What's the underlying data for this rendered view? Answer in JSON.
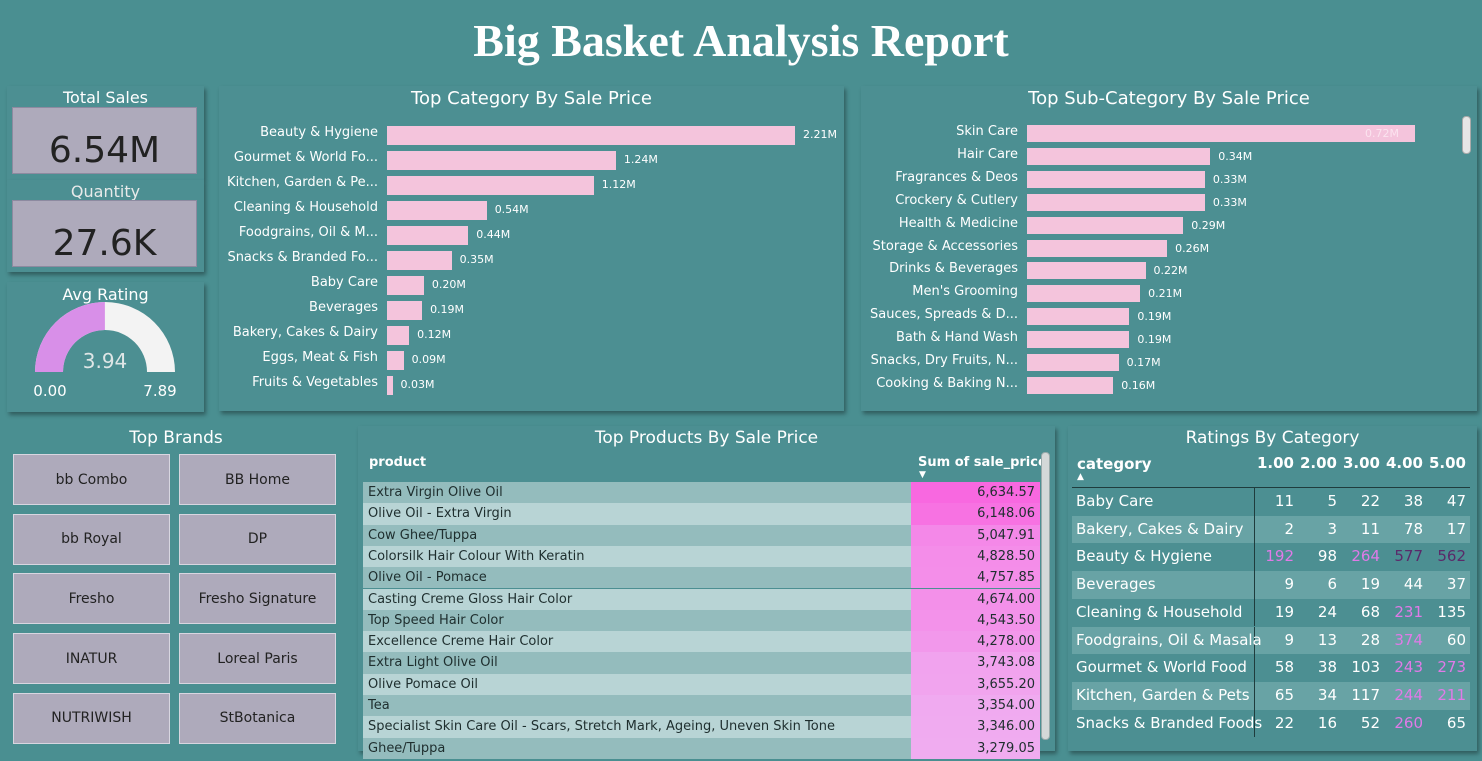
{
  "report": {
    "title": "Big Basket Analysis Report"
  },
  "kpis": {
    "total_sales": {
      "label": "Total Sales",
      "value": "6.54M"
    },
    "quantity": {
      "label": "Quantity",
      "value": "27.6K"
    },
    "avg_rating": {
      "label": "Avg Rating",
      "value": "3.94",
      "min": "0.00",
      "max": "7.89",
      "fraction": 0.4994,
      "fill_color": "#d88fe8",
      "track_color": "#f3f3f3"
    }
  },
  "top_category": {
    "title": "Top Category By Sale Price",
    "items": [
      {
        "label": "Beauty & Hygiene",
        "value": 2.21,
        "display": "2.21M"
      },
      {
        "label": "Gourmet & World Fo...",
        "value": 1.24,
        "display": "1.24M"
      },
      {
        "label": "Kitchen, Garden & Pe...",
        "value": 1.12,
        "display": "1.12M"
      },
      {
        "label": "Cleaning & Household",
        "value": 0.54,
        "display": "0.54M"
      },
      {
        "label": "Foodgrains, Oil & M...",
        "value": 0.44,
        "display": "0.44M"
      },
      {
        "label": "Snacks & Branded Fo...",
        "value": 0.35,
        "display": "0.35M"
      },
      {
        "label": "Baby Care",
        "value": 0.2,
        "display": "0.20M"
      },
      {
        "label": "Beverages",
        "value": 0.19,
        "display": "0.19M"
      },
      {
        "label": "Bakery, Cakes & Dairy",
        "value": 0.12,
        "display": "0.12M"
      },
      {
        "label": "Eggs, Meat & Fish",
        "value": 0.09,
        "display": "0.09M"
      },
      {
        "label": "Fruits & Vegetables",
        "value": 0.03,
        "display": "0.03M"
      }
    ]
  },
  "top_subcategory": {
    "title": "Top Sub-Category By Sale Price",
    "items": [
      {
        "label": "Skin Care",
        "value": 0.72,
        "display": "0.72M"
      },
      {
        "label": "Hair Care",
        "value": 0.34,
        "display": "0.34M"
      },
      {
        "label": "Fragrances & Deos",
        "value": 0.33,
        "display": "0.33M"
      },
      {
        "label": "Crockery & Cutlery",
        "value": 0.33,
        "display": "0.33M"
      },
      {
        "label": "Health & Medicine",
        "value": 0.29,
        "display": "0.29M"
      },
      {
        "label": "Storage & Accessories",
        "value": 0.26,
        "display": "0.26M"
      },
      {
        "label": "Drinks & Beverages",
        "value": 0.22,
        "display": "0.22M"
      },
      {
        "label": "Men's Grooming",
        "value": 0.21,
        "display": "0.21M"
      },
      {
        "label": "Sauces, Spreads & D...",
        "value": 0.19,
        "display": "0.19M"
      },
      {
        "label": "Bath & Hand Wash",
        "value": 0.19,
        "display": "0.19M"
      },
      {
        "label": "Snacks, Dry Fruits, N...",
        "value": 0.17,
        "display": "0.17M"
      },
      {
        "label": "Cooking & Baking N...",
        "value": 0.16,
        "display": "0.16M"
      }
    ]
  },
  "top_brands": {
    "title": "Top Brands",
    "items": [
      "bb Combo",
      "BB Home",
      "bb Royal",
      "DP",
      "Fresho",
      "Fresho Signature",
      "INATUR",
      "Loreal Paris",
      "NUTRIWISH",
      "StBotanica"
    ]
  },
  "top_products": {
    "title": "Top Products By Sale Price",
    "col_product": "product",
    "col_value": "Sum of sale_price",
    "rows": [
      {
        "product": "Extra Virgin Olive Oil",
        "value": 6634.57,
        "display": "6,634.57"
      },
      {
        "product": "Olive Oil - Extra Virgin",
        "value": 6148.06,
        "display": "6,148.06"
      },
      {
        "product": "Cow Ghee/Tuppa",
        "value": 5047.91,
        "display": "5,047.91"
      },
      {
        "product": "Colorsilk Hair Colour With Keratin",
        "value": 4828.5,
        "display": "4,828.50"
      },
      {
        "product": "Olive Oil - Pomace",
        "value": 4757.85,
        "display": "4,757.85"
      },
      {
        "product": "Casting Creme Gloss Hair Color",
        "value": 4674.0,
        "display": "4,674.00"
      },
      {
        "product": "Top Speed Hair Color",
        "value": 4543.5,
        "display": "4,543.50"
      },
      {
        "product": "Excellence Creme Hair Color",
        "value": 4278.0,
        "display": "4,278.00"
      },
      {
        "product": "Extra Light Olive Oil",
        "value": 3743.08,
        "display": "3,743.08"
      },
      {
        "product": "Olive Pomace Oil",
        "value": 3655.2,
        "display": "3,655.20"
      },
      {
        "product": "Tea",
        "value": 3354.0,
        "display": "3,354.00"
      },
      {
        "product": "Specialist Skin Care Oil - Scars, Stretch Mark, Ageing, Uneven Skin Tone",
        "value": 3346.0,
        "display": "3,346.00"
      },
      {
        "product": "Ghee/Tuppa",
        "value": 3279.05,
        "display": "3,279.05"
      }
    ]
  },
  "ratings_by_category": {
    "title": "Ratings By Category",
    "col_category": "category",
    "columns": [
      "1.00",
      "2.00",
      "3.00",
      "4.00",
      "5.00"
    ],
    "rows": [
      {
        "category": "Baby Care",
        "values": [
          11,
          5,
          22,
          38,
          47
        ]
      },
      {
        "category": "Bakery, Cakes & Dairy",
        "values": [
          2,
          3,
          11,
          78,
          17
        ]
      },
      {
        "category": "Beauty & Hygiene",
        "values": [
          192,
          98,
          264,
          577,
          562
        ]
      },
      {
        "category": "Beverages",
        "values": [
          9,
          6,
          19,
          44,
          37
        ]
      },
      {
        "category": "Cleaning & Household",
        "values": [
          19,
          24,
          68,
          231,
          135
        ]
      },
      {
        "category": "Foodgrains, Oil & Masala",
        "values": [
          9,
          13,
          28,
          374,
          60
        ]
      },
      {
        "category": "Gourmet & World Food",
        "values": [
          58,
          38,
          103,
          243,
          273
        ]
      },
      {
        "category": "Kitchen, Garden & Pets",
        "values": [
          65,
          34,
          117,
          244,
          211
        ]
      },
      {
        "category": "Snacks & Branded Foods",
        "values": [
          22,
          16,
          52,
          260,
          65
        ]
      }
    ]
  },
  "colors": {
    "background": "#4a8f91",
    "bar": "#f4c4dc",
    "card": "#aeaabb",
    "highlight": "#e07ae8"
  }
}
